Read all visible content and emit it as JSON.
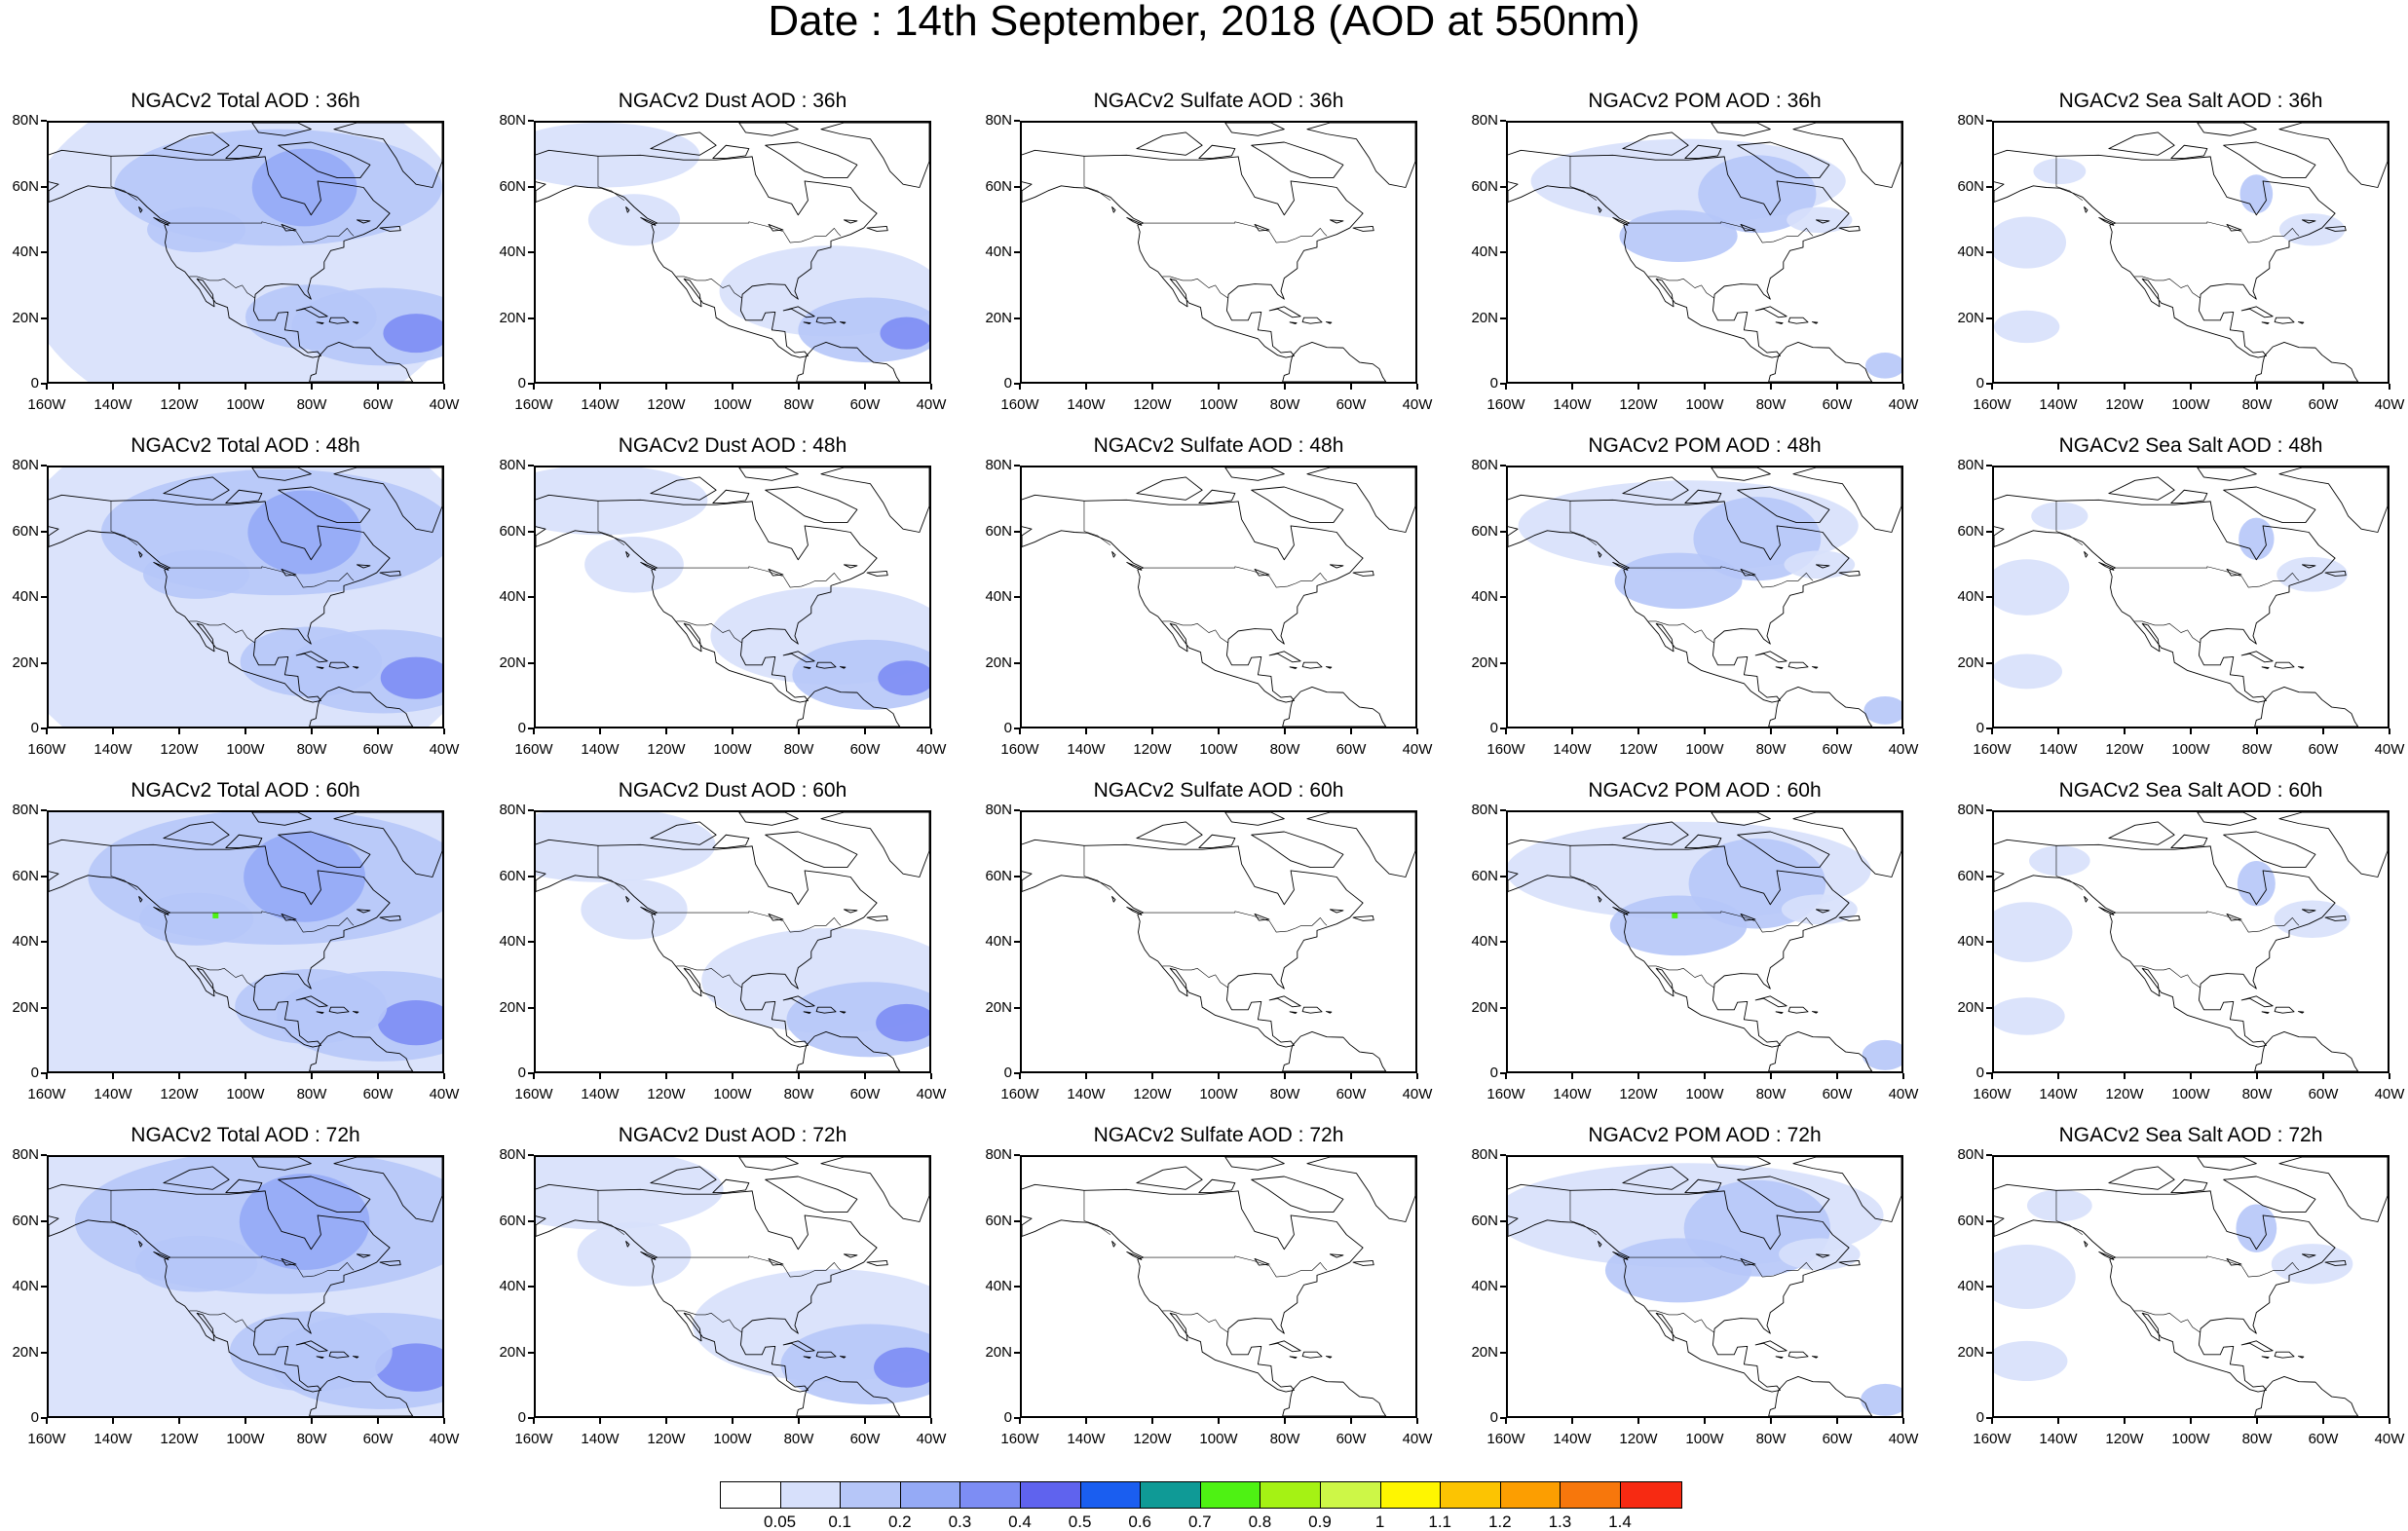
{
  "title": "Date : 14th September, 2018 (AOD at 550nm)",
  "lat_ticks": [
    "80N",
    "60N",
    "40N",
    "20N",
    "0"
  ],
  "lon_ticks": [
    "160W",
    "140W",
    "120W",
    "100W",
    "80W",
    "60W",
    "40W"
  ],
  "panels": [
    [
      {
        "title": "NGACv2 Total AOD : 36h",
        "species": "total",
        "hour": 36
      },
      {
        "title": "NGACv2 Dust AOD : 36h",
        "species": "dust",
        "hour": 36
      },
      {
        "title": "NGACv2 Sulfate AOD : 36h",
        "species": "sulfate",
        "hour": 36
      },
      {
        "title": "NGACv2 POM AOD : 36h",
        "species": "pom",
        "hour": 36
      },
      {
        "title": "NGACv2 Sea Salt AOD : 36h",
        "species": "seasalt",
        "hour": 36
      }
    ],
    [
      {
        "title": "NGACv2 Total AOD : 48h",
        "species": "total",
        "hour": 48
      },
      {
        "title": "NGACv2 Dust AOD : 48h",
        "species": "dust",
        "hour": 48
      },
      {
        "title": "NGACv2 Sulfate AOD : 48h",
        "species": "sulfate",
        "hour": 48
      },
      {
        "title": "NGACv2 POM AOD : 48h",
        "species": "pom",
        "hour": 48
      },
      {
        "title": "NGACv2 Sea Salt AOD : 48h",
        "species": "seasalt",
        "hour": 48
      }
    ],
    [
      {
        "title": "NGACv2 Total AOD : 60h",
        "species": "total",
        "hour": 60
      },
      {
        "title": "NGACv2 Dust AOD : 60h",
        "species": "dust",
        "hour": 60
      },
      {
        "title": "NGACv2 Sulfate AOD : 60h",
        "species": "sulfate",
        "hour": 60
      },
      {
        "title": "NGACv2 POM AOD : 60h",
        "species": "pom",
        "hour": 60
      },
      {
        "title": "NGACv2 Sea Salt AOD : 60h",
        "species": "seasalt",
        "hour": 60
      }
    ],
    [
      {
        "title": "NGACv2 Total AOD : 72h",
        "species": "total",
        "hour": 72
      },
      {
        "title": "NGACv2 Dust AOD : 72h",
        "species": "dust",
        "hour": 72
      },
      {
        "title": "NGACv2 Sulfate AOD : 72h",
        "species": "sulfate",
        "hour": 72
      },
      {
        "title": "NGACv2 POM AOD : 72h",
        "species": "pom",
        "hour": 72
      },
      {
        "title": "NGACv2 Sea Salt  AOD : 72h",
        "species": "seasalt",
        "hour": 72
      }
    ]
  ],
  "colorbar": {
    "labels": [
      "0.05",
      "0.1",
      "0.2",
      "0.3",
      "0.4",
      "0.5",
      "0.6",
      "0.7",
      "0.8",
      "0.9",
      "1",
      "1.1",
      "1.2",
      "1.3",
      "1.4"
    ],
    "colors": [
      "#ffffff",
      "#d7e0fb",
      "#b6c6f8",
      "#95aaf6",
      "#7d8df4",
      "#5f63ee",
      "#1a5ef0",
      "#0f9a96",
      "#4ef213",
      "#a5f214",
      "#cdf747",
      "#fff600",
      "#fcc402",
      "#fc9e01",
      "#f7770c",
      "#f72a12"
    ]
  }
}
